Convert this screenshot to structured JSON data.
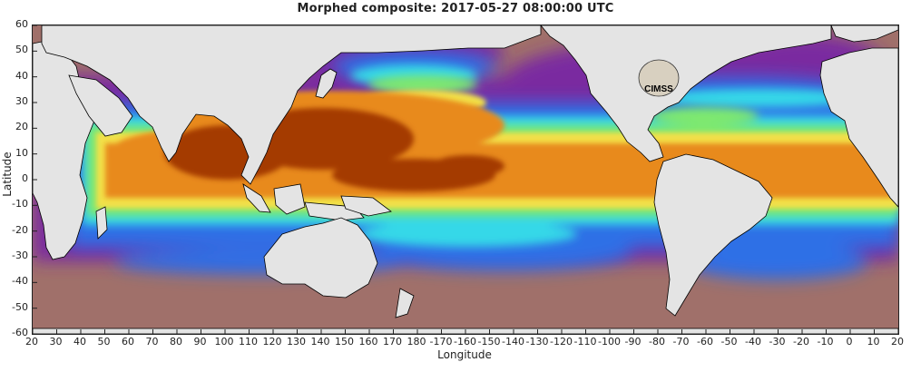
{
  "title": "Morphed composite: 2017-05-27 08:00:00 UTC",
  "xlabel": "Longitude",
  "ylabel": "Latitude",
  "x_ticks": [
    "20",
    "30",
    "40",
    "50",
    "60",
    "70",
    "80",
    "90",
    "100",
    "110",
    "120",
    "130",
    "140",
    "150",
    "160",
    "170",
    "180",
    "-170",
    "-160",
    "-150",
    "-140",
    "-130",
    "-120",
    "-110",
    "-100",
    "-90",
    "-80",
    "-70",
    "-60",
    "-50",
    "-40",
    "-30",
    "-20",
    "-10",
    "0",
    "10",
    "20"
  ],
  "y_ticks": [
    "60",
    "50",
    "40",
    "30",
    "20",
    "10",
    "0",
    "-10",
    "-20",
    "-30",
    "-40",
    "-50",
    "-60"
  ],
  "logo_text": "CIMSS",
  "colors": {
    "land": "#e4e4e4",
    "deep_dry": "#a0706a",
    "purple": "#7a2aa0",
    "blue": "#2f6fe6",
    "cyan": "#35d8e8",
    "green": "#7ee870",
    "yellow": "#f2e04a",
    "orange": "#e88a1a",
    "dark_orange": "#a43a06"
  }
}
